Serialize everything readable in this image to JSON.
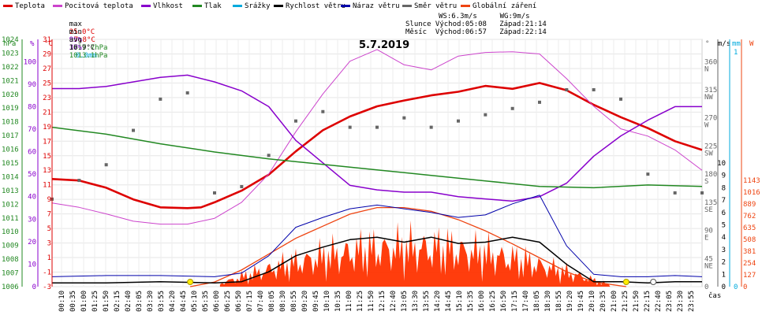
{
  "legend": [
    {
      "label": "Teplota",
      "color": "#dd0000"
    },
    {
      "label": "Pocitová teplota",
      "color": "#cc44cc"
    },
    {
      "label": "Vlhkost",
      "color": "#8800cc"
    },
    {
      "label": "Tlak",
      "color": "#228822"
    },
    {
      "label": "Srážky",
      "color": "#00aadd"
    },
    {
      "label": "Rychlost větru",
      "color": "#000000"
    },
    {
      "label": "Náraz větru",
      "color": "#0000aa"
    },
    {
      "label": "Směr větru",
      "color": "#666666"
    },
    {
      "label": "Globální záření",
      "color": "#ee4411"
    }
  ],
  "stats": {
    "max": {
      "label": "max",
      "temp": "25.0°C",
      "hum": "95%",
      "press": "1017.7hPa",
      "rain": "0.0mm"
    },
    "min": {
      "label": "min",
      "temp": "7.8°C",
      "hum": "37%",
      "press": "1013.1hPa"
    },
    "avg": {
      "label": "avg",
      "temp": "16.9°C"
    }
  },
  "astro": {
    "ws": "WS:6.3m/s",
    "wg": "WG:9m/s",
    "sun": "Slunce Východ:05:08   Západ:21:14",
    "moon": "Měsíc  Východ:06:57   Západ:22:14"
  },
  "axis_headers": {
    "hpa": "hPa",
    "pct": "%",
    "degc": "°C",
    "dir": "°",
    "ms": "m/s",
    "mm": "mm",
    "w": "W",
    "time": "čas"
  },
  "chart_data": {
    "type": "line",
    "title": "5.7.2019",
    "x_ticks": [
      "00:10",
      "00:35",
      "01:00",
      "01:25",
      "01:50",
      "02:15",
      "02:40",
      "03:05",
      "03:30",
      "03:55",
      "04:20",
      "04:45",
      "05:10",
      "05:35",
      "06:00",
      "06:25",
      "06:50",
      "07:15",
      "07:40",
      "08:05",
      "08:30",
      "08:55",
      "09:20",
      "09:45",
      "10:10",
      "10:35",
      "11:00",
      "11:25",
      "11:50",
      "12:15",
      "12:40",
      "13:05",
      "13:30",
      "13:55",
      "14:20",
      "14:45",
      "15:10",
      "15:35",
      "16:00",
      "16:25",
      "16:50",
      "17:15",
      "17:40",
      "18:05",
      "18:30",
      "18:55",
      "19:20",
      "19:45",
      "20:10",
      "20:35",
      "21:00",
      "21:25",
      "21:50",
      "22:15",
      "22:40",
      "23:05",
      "23:30",
      "23:55"
    ],
    "axes": {
      "pressure_hpa": {
        "ticks": [
          "1006",
          "1007",
          "1008",
          "1009",
          "1010",
          "1011",
          "1012",
          "1013",
          "1014",
          "1015",
          "1016",
          "1017",
          "1018",
          "1019",
          "1020",
          "1021",
          "1022",
          "1023",
          "1024"
        ]
      },
      "humidity_pct": {
        "ticks": [
          "0",
          "10",
          "20",
          "30",
          "40",
          "50",
          "60",
          "70",
          "80",
          "90",
          "100"
        ]
      },
      "temperature_c": {
        "ticks": [
          "-3",
          "-1",
          "1",
          "3",
          "5",
          "7",
          "9",
          "11",
          "13",
          "15",
          "17",
          "19",
          "21",
          "23",
          "25",
          "27",
          "29",
          "31"
        ]
      },
      "direction_deg": {
        "ticks": [
          "0",
          "45 NE",
          "90 E",
          "135 SE",
          "180 S",
          "225 SW",
          "270 W",
          "315 NW",
          "360 N"
        ]
      },
      "wind_ms": {
        "ticks": [
          "0",
          "1",
          "2",
          "3",
          "4",
          "5",
          "6",
          "7",
          "8",
          "9",
          "10"
        ]
      },
      "rain_mm": {
        "ticks": [
          "0",
          "1"
        ]
      },
      "radiation_w": {
        "ticks": [
          "0",
          "127",
          "254",
          "381",
          "508",
          "635",
          "762",
          "889",
          "1016",
          "1143"
        ]
      }
    },
    "series": [
      {
        "name": "Teplota",
        "unit": "°C",
        "x": [
          0,
          1,
          2,
          3,
          4,
          5,
          5.5,
          6,
          7,
          8,
          9,
          10,
          11,
          12,
          13,
          14,
          15,
          16,
          17,
          18,
          19,
          20,
          21,
          22,
          23,
          24
        ],
        "y": [
          11.8,
          11.6,
          10.6,
          9.0,
          7.9,
          7.8,
          7.9,
          8.6,
          10.2,
          12.4,
          15.6,
          18.5,
          20.4,
          21.8,
          22.6,
          23.3,
          23.8,
          24.6,
          24.2,
          25.0,
          24.0,
          22.0,
          20.3,
          18.8,
          17.0,
          15.8
        ]
      },
      {
        "name": "Pocitová teplota",
        "unit": "°C",
        "x": [
          0,
          1,
          2,
          3,
          4,
          5,
          6,
          7,
          8,
          9,
          10,
          11,
          12,
          13,
          14,
          15,
          16,
          17,
          18,
          19,
          20,
          21,
          22,
          23,
          24
        ],
        "y": [
          8.5,
          7.9,
          7.0,
          6.0,
          5.6,
          5.6,
          6.4,
          8.6,
          12.5,
          18.3,
          23.5,
          28.0,
          29.6,
          27.5,
          26.8,
          28.7,
          29.2,
          29.3,
          29.0,
          25.6,
          21.8,
          18.7,
          17.7,
          15.8,
          13.0
        ]
      },
      {
        "name": "Vlhkost",
        "unit": "%",
        "x": [
          0,
          1,
          2,
          3,
          4,
          5,
          6,
          7,
          8,
          9,
          10,
          11,
          12,
          13,
          14,
          15,
          16,
          17,
          18,
          19,
          20,
          21,
          22,
          23,
          24
        ],
        "y": [
          88,
          88,
          89,
          91,
          93,
          94,
          91,
          87,
          80,
          65,
          55,
          45,
          43,
          42,
          42,
          40,
          39,
          38,
          40,
          46,
          58,
          67,
          74,
          80,
          80
        ]
      },
      {
        "name": "Tlak",
        "unit": "hPa",
        "x": [
          0,
          2,
          4,
          6,
          8,
          10,
          12,
          14,
          16,
          18,
          20,
          22,
          24
        ],
        "y": [
          1017.6,
          1017.1,
          1016.4,
          1015.8,
          1015.3,
          1014.9,
          1014.5,
          1014.1,
          1013.7,
          1013.3,
          1013.2,
          1013.4,
          1013.3
        ]
      },
      {
        "name": "Globální záření",
        "unit": "W",
        "x": [
          5.1,
          6,
          7,
          8,
          9,
          10,
          11,
          12,
          13,
          14,
          15,
          16,
          17,
          18,
          19,
          20,
          21.2
        ],
        "y": [
          0,
          50,
          180,
          350,
          520,
          650,
          780,
          850,
          850,
          810,
          720,
          600,
          460,
          310,
          160,
          50,
          0
        ]
      },
      {
        "name": "Rychlost větru",
        "unit": "m/s",
        "x": [
          0,
          2,
          4,
          6,
          7,
          8,
          9,
          10,
          11,
          12,
          13,
          14,
          15,
          16,
          17,
          18,
          19,
          20,
          21,
          22,
          23,
          24
        ],
        "y": [
          0.3,
          0.3,
          0.4,
          0.3,
          0.4,
          1.2,
          2.5,
          3.2,
          3.8,
          4.0,
          3.6,
          4.0,
          3.5,
          3.6,
          4.0,
          3.6,
          1.8,
          0.4,
          0.4,
          0.3,
          0.4,
          0.4
        ]
      },
      {
        "name": "Náraz větru",
        "unit": "m/s",
        "x": [
          0,
          2,
          4,
          6,
          7,
          8,
          9,
          10,
          11,
          12,
          13,
          14,
          15,
          16,
          17,
          18,
          19,
          20,
          21,
          22,
          23,
          24
        ],
        "y": [
          0.8,
          0.9,
          0.9,
          0.8,
          1.1,
          2.5,
          4.8,
          5.6,
          6.3,
          6.6,
          6.3,
          6.0,
          5.6,
          5.8,
          6.7,
          7.4,
          3.3,
          1.0,
          0.8,
          0.8,
          0.9,
          0.8
        ]
      },
      {
        "name": "Směr větru",
        "unit": "°",
        "x": [
          0,
          1,
          2,
          3,
          4,
          5,
          6,
          7,
          8,
          9,
          10,
          11,
          12,
          13,
          14,
          15,
          16,
          17,
          18,
          19,
          20,
          21,
          22,
          23,
          24
        ],
        "y": [
          140,
          170,
          195,
          250,
          300,
          310,
          150,
          160,
          210,
          265,
          280,
          255,
          255,
          270,
          255,
          265,
          275,
          285,
          295,
          315,
          315,
          300,
          180,
          150,
          150
        ]
      }
    ]
  }
}
